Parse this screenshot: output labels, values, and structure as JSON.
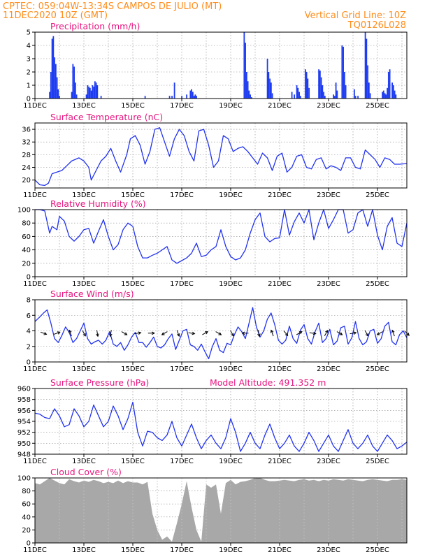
{
  "header": {
    "line1": "CPTEC:   059:04W-13:34S   CAMPOS DE JULIO (MT)",
    "line2": "11DEC2020 10Z (GMT)",
    "grid_note": "Vertical Grid Line: 10Z",
    "code": "TQ0126L028"
  },
  "colors": {
    "header_text": "#ff8c1a",
    "panel_title": "#e6157f",
    "series_line": "#2233ee",
    "precip_bar": "#1f3cf0",
    "cloud_fill": "#a8a8a8",
    "wind_arrow": "#000000"
  },
  "chart_data": [
    {
      "type": "bar",
      "title": "Precipitation (mm/h)",
      "x_ticks": [
        "11DEC",
        "13DEC",
        "15DEC",
        "17DEC",
        "19DEC",
        "21DEC",
        "23DEC",
        "25DEC"
      ],
      "ylim": [
        0,
        5
      ],
      "y_ticks": [
        0,
        1,
        2,
        3,
        4,
        5
      ],
      "grid": true,
      "x_days": [
        0.6,
        0.65,
        0.7,
        0.75,
        0.8,
        0.85,
        0.9,
        0.95,
        1.0,
        1.5,
        1.55,
        1.6,
        1.65,
        1.7,
        2.1,
        2.15,
        2.2,
        2.25,
        2.3,
        2.35,
        2.4,
        2.45,
        2.5,
        2.55,
        2.7,
        4.5,
        5.5,
        5.6,
        5.7,
        6.0,
        6.2,
        6.35,
        6.4,
        6.45,
        6.5,
        6.55,
        6.6,
        8.55,
        8.6,
        8.65,
        8.7,
        8.75,
        8.8,
        8.85,
        9.5,
        9.55,
        9.6,
        9.65,
        9.7,
        10.5,
        10.6,
        10.7,
        10.75,
        10.8,
        10.85,
        11.05,
        11.1,
        11.15,
        11.2,
        11.6,
        11.65,
        11.7,
        11.75,
        11.8,
        11.85,
        12.2,
        12.25,
        12.3,
        12.35,
        12.55,
        12.6,
        12.65,
        12.7,
        13.05,
        13.1,
        13.2,
        13.5,
        13.55,
        13.6,
        13.65,
        13.7,
        14.2,
        14.25,
        14.3,
        14.35,
        14.4,
        14.45,
        14.5,
        14.6,
        14.65,
        14.7,
        14.75
      ],
      "values": [
        0.5,
        2.0,
        4.5,
        4.7,
        3.1,
        2.6,
        1.6,
        0.7,
        0.2,
        0.5,
        2.6,
        2.4,
        1.2,
        0.3,
        0.3,
        1.0,
        0.9,
        0.8,
        0.6,
        1.0,
        0.9,
        1.3,
        1.2,
        1.0,
        0.2,
        0.2,
        0.2,
        0.2,
        1.2,
        0.2,
        0.3,
        0.6,
        0.7,
        0.5,
        0.2,
        0.3,
        0.2,
        5.0,
        4.2,
        2.0,
        1.3,
        0.6,
        0.3,
        0.1,
        3.0,
        2.0,
        1.5,
        1.2,
        0.4,
        0.5,
        0.3,
        1.0,
        0.8,
        0.5,
        0.2,
        2.2,
        2.0,
        1.5,
        0.8,
        2.2,
        2.1,
        1.6,
        1.0,
        0.5,
        0.2,
        0.3,
        0.2,
        1.2,
        0.6,
        4.0,
        3.9,
        2.0,
        1.0,
        0.7,
        0.2,
        0.2,
        5.0,
        4.5,
        2.5,
        1.2,
        0.4,
        0.5,
        0.6,
        0.4,
        0.3,
        0.8,
        2.0,
        2.2,
        1.2,
        1.0,
        0.6,
        0.3
      ]
    },
    {
      "type": "line",
      "title": "Surface Temperature (nC)",
      "x_ticks": [
        "11DEC",
        "13DEC",
        "15DEC",
        "17DEC",
        "19DEC",
        "21DEC",
        "23DEC",
        "25DEC"
      ],
      "ylim": [
        17.5,
        38
      ],
      "y_ticks": [
        20,
        24,
        28,
        32,
        36
      ],
      "grid": true,
      "x_days": [
        0,
        0.2,
        0.4,
        0.55,
        0.7,
        0.9,
        1.1,
        1.3,
        1.5,
        1.8,
        2.0,
        2.2,
        2.3,
        2.5,
        2.7,
        2.9,
        3.1,
        3.3,
        3.5,
        3.75,
        3.9,
        4.1,
        4.3,
        4.5,
        4.7,
        4.9,
        5.1,
        5.3,
        5.5,
        5.7,
        5.9,
        6.1,
        6.3,
        6.5,
        6.7,
        6.9,
        7.1,
        7.3,
        7.5,
        7.7,
        7.9,
        8.1,
        8.3,
        8.5,
        8.7,
        8.9,
        9.1,
        9.3,
        9.5,
        9.7,
        9.9,
        10.1,
        10.3,
        10.5,
        10.7,
        10.9,
        11.1,
        11.3,
        11.5,
        11.7,
        11.9,
        12.1,
        12.3,
        12.5,
        12.7,
        12.9,
        13.1,
        13.3,
        13.5,
        13.7,
        13.9,
        14.1,
        14.3,
        14.5,
        14.7,
        14.9,
        15.2
      ],
      "values": [
        20.0,
        18.5,
        18.3,
        19.0,
        22.0,
        22.5,
        23.0,
        24.5,
        26.0,
        27.0,
        26.0,
        24.0,
        20.0,
        23.0,
        26.0,
        27.5,
        30.0,
        26.0,
        22.5,
        28.0,
        33.0,
        34.0,
        31.0,
        25.0,
        29.0,
        36.0,
        36.5,
        32.0,
        27.5,
        33.0,
        36.0,
        34.0,
        29.0,
        26.0,
        35.5,
        36.0,
        31.0,
        24.0,
        26.0,
        34.0,
        33.0,
        29.0,
        30.0,
        30.5,
        29.0,
        27.0,
        25.0,
        28.5,
        27.0,
        23.0,
        27.5,
        28.5,
        22.5,
        24.0,
        27.5,
        28.0,
        24.0,
        23.5,
        26.5,
        27.0,
        23.5,
        24.5,
        24.0,
        23.0,
        27.0,
        27.0,
        24.0,
        23.5,
        29.5,
        28.0,
        26.5,
        24.0,
        27.0,
        26.5,
        25.0,
        25.0,
        25.2
      ]
    },
    {
      "type": "line",
      "title": "Relative Humidity (%)",
      "x_ticks": [
        "11DEC",
        "13DEC",
        "15DEC",
        "17DEC",
        "19DEC",
        "21DEC",
        "23DEC",
        "25DEC"
      ],
      "ylim": [
        0,
        100
      ],
      "y_ticks": [
        0,
        20,
        40,
        60,
        80,
        100
      ],
      "grid": true,
      "x_days": [
        0,
        0.2,
        0.4,
        0.6,
        0.7,
        0.9,
        1.0,
        1.2,
        1.4,
        1.6,
        1.8,
        2.0,
        2.2,
        2.4,
        2.6,
        2.8,
        3.0,
        3.2,
        3.4,
        3.6,
        3.8,
        4.0,
        4.2,
        4.4,
        4.6,
        4.8,
        5.0,
        5.2,
        5.4,
        5.6,
        5.8,
        6.0,
        6.2,
        6.4,
        6.6,
        6.8,
        7.0,
        7.2,
        7.4,
        7.6,
        7.8,
        8.0,
        8.2,
        8.4,
        8.6,
        8.8,
        9.0,
        9.2,
        9.4,
        9.6,
        9.8,
        10.0,
        10.2,
        10.4,
        10.6,
        10.8,
        11.0,
        11.2,
        11.4,
        11.6,
        11.8,
        12.0,
        12.2,
        12.4,
        12.6,
        12.8,
        13.0,
        13.2,
        13.4,
        13.6,
        13.8,
        14.0,
        14.2,
        14.4,
        14.6,
        14.8,
        15.0,
        15.2
      ],
      "values": [
        100,
        100,
        98,
        65,
        75,
        70,
        90,
        83,
        60,
        53,
        60,
        70,
        72,
        50,
        68,
        85,
        60,
        40,
        48,
        70,
        80,
        75,
        45,
        28,
        28,
        32,
        35,
        40,
        45,
        25,
        20,
        24,
        28,
        35,
        50,
        30,
        32,
        40,
        45,
        70,
        45,
        30,
        25,
        28,
        40,
        65,
        85,
        95,
        60,
        52,
        57,
        58,
        100,
        62,
        82,
        95,
        80,
        100,
        55,
        80,
        100,
        72,
        85,
        100,
        100,
        65,
        70,
        95,
        100,
        75,
        100,
        62,
        40,
        75,
        88,
        50,
        45,
        80
      ]
    },
    {
      "type": "line",
      "title": "Surface Wind (m/s)",
      "x_ticks": [
        "11DEC",
        "13DEC",
        "15DEC",
        "17DEC",
        "19DEC",
        "21DEC",
        "23DEC",
        "25DEC"
      ],
      "ylim": [
        0,
        8
      ],
      "y_ticks": [
        0,
        2,
        4,
        6,
        8
      ],
      "grid": true,
      "x_days": [
        0,
        0.1,
        0.2,
        0.35,
        0.5,
        0.65,
        0.8,
        0.95,
        1.1,
        1.25,
        1.4,
        1.55,
        1.7,
        1.85,
        2.0,
        2.15,
        2.3,
        2.45,
        2.6,
        2.75,
        2.9,
        3.05,
        3.2,
        3.35,
        3.5,
        3.65,
        3.8,
        3.95,
        4.1,
        4.25,
        4.4,
        4.55,
        4.7,
        4.85,
        5.0,
        5.15,
        5.3,
        5.45,
        5.6,
        5.75,
        5.9,
        6.05,
        6.2,
        6.35,
        6.5,
        6.65,
        6.8,
        6.95,
        7.1,
        7.25,
        7.4,
        7.55,
        7.7,
        7.85,
        8.0,
        8.15,
        8.3,
        8.45,
        8.6,
        8.75,
        8.9,
        9.05,
        9.2,
        9.35,
        9.5,
        9.65,
        9.8,
        9.95,
        10.1,
        10.25,
        10.4,
        10.55,
        10.7,
        10.85,
        11.0,
        11.15,
        11.3,
        11.45,
        11.6,
        11.75,
        11.9,
        12.05,
        12.2,
        12.35,
        12.5,
        12.65,
        12.8,
        12.95,
        13.1,
        13.25,
        13.4,
        13.55,
        13.7,
        13.85,
        14.0,
        14.15,
        14.3,
        14.45,
        14.6,
        14.75,
        14.9,
        15.05,
        15.2
      ],
      "values": [
        5.2,
        5.5,
        5.8,
        6.3,
        6.7,
        5.0,
        3.0,
        2.5,
        3.4,
        4.5,
        3.8,
        2.5,
        3.0,
        4.0,
        5.0,
        3.0,
        2.3,
        2.6,
        2.8,
        2.3,
        2.8,
        3.9,
        2.3,
        2.0,
        2.5,
        1.5,
        2.2,
        3.2,
        3.8,
        2.5,
        2.5,
        1.9,
        2.5,
        3.2,
        2.0,
        1.8,
        2.2,
        3.0,
        3.6,
        1.6,
        2.8,
        4.0,
        4.2,
        2.2,
        2.0,
        1.5,
        2.3,
        1.3,
        0.4,
        2.0,
        3.0,
        1.5,
        1.2,
        2.4,
        2.2,
        3.5,
        4.5,
        3.9,
        3.0,
        5.0,
        7.0,
        4.5,
        3.2,
        4.0,
        5.5,
        6.3,
        4.8,
        2.8,
        2.3,
        2.8,
        4.6,
        3.0,
        2.4,
        4.1,
        4.8,
        3.0,
        2.3,
        3.9,
        5.0,
        2.5,
        3.0,
        4.2,
        2.2,
        2.7,
        4.4,
        4.6,
        2.3,
        3.1,
        5.2,
        3.0,
        2.2,
        2.6,
        4.0,
        4.2,
        2.4,
        3.0,
        4.6,
        5.1,
        2.6,
        2.2,
        3.5,
        4.0,
        3.1
      ]
    },
    {
      "type": "line",
      "title": "Surface Pressure (hPa)",
      "annotation": "Model Altitude: 491.352 m",
      "x_ticks": [
        "11DEC",
        "13DEC",
        "15DEC",
        "17DEC",
        "19DEC",
        "21DEC",
        "23DEC",
        "25DEC"
      ],
      "ylim": [
        948,
        960
      ],
      "y_ticks": [
        948,
        950,
        952,
        954,
        956,
        958,
        960
      ],
      "grid": true,
      "x_days": [
        0,
        0.2,
        0.4,
        0.6,
        0.8,
        1.0,
        1.2,
        1.4,
        1.6,
        1.8,
        2.0,
        2.2,
        2.4,
        2.6,
        2.8,
        3.0,
        3.2,
        3.4,
        3.6,
        3.8,
        4.0,
        4.2,
        4.4,
        4.6,
        4.8,
        5.0,
        5.2,
        5.4,
        5.6,
        5.8,
        6.0,
        6.2,
        6.4,
        6.6,
        6.8,
        7.0,
        7.2,
        7.4,
        7.6,
        7.8,
        8.0,
        8.2,
        8.4,
        8.6,
        8.8,
        9.0,
        9.2,
        9.4,
        9.6,
        9.8,
        10.0,
        10.2,
        10.4,
        10.6,
        10.8,
        11.0,
        11.2,
        11.4,
        11.6,
        11.8,
        12.0,
        12.2,
        12.4,
        12.6,
        12.8,
        13.0,
        13.2,
        13.4,
        13.6,
        13.8,
        14.0,
        14.2,
        14.4,
        14.6,
        14.8,
        15.0,
        15.2
      ],
      "values": [
        955.5,
        955.3,
        954.7,
        954.5,
        956.3,
        955.0,
        953.0,
        953.4,
        956.3,
        955.0,
        953.0,
        954.0,
        957.0,
        955.0,
        953.0,
        954.0,
        956.8,
        955.0,
        952.5,
        954.5,
        957.5,
        952.0,
        949.5,
        952.2,
        952.0,
        951.0,
        950.5,
        951.5,
        954.0,
        951.0,
        949.5,
        951.5,
        953.5,
        951.0,
        949.0,
        950.5,
        951.5,
        950.0,
        949.0,
        951.0,
        954.5,
        952.0,
        948.5,
        950.0,
        952.0,
        950.0,
        949.0,
        951.5,
        953.5,
        951.0,
        949.0,
        950.0,
        951.5,
        949.5,
        948.5,
        950.0,
        952.0,
        950.5,
        948.5,
        950.0,
        951.5,
        949.5,
        948.5,
        950.5,
        952.5,
        950.0,
        949.0,
        950.0,
        951.5,
        949.5,
        948.5,
        950.0,
        951.5,
        950.5,
        949.0,
        949.5,
        950.2
      ]
    },
    {
      "type": "area",
      "title": "Cloud Cover (%)",
      "x_ticks": [
        "11DEC",
        "13DEC",
        "15DEC",
        "17DEC",
        "19DEC",
        "21DEC",
        "23DEC",
        "25DEC"
      ],
      "ylim": [
        0,
        100
      ],
      "y_ticks": [
        0,
        20,
        40,
        60,
        80,
        100
      ],
      "grid": true,
      "x_days": [
        0,
        0.2,
        0.4,
        0.6,
        0.8,
        1.0,
        1.2,
        1.4,
        1.6,
        1.8,
        2.0,
        2.2,
        2.4,
        2.6,
        2.8,
        3.0,
        3.2,
        3.4,
        3.6,
        3.8,
        4.0,
        4.2,
        4.4,
        4.6,
        4.8,
        5.0,
        5.2,
        5.4,
        5.6,
        5.8,
        6.0,
        6.2,
        6.4,
        6.6,
        6.8,
        7.0,
        7.2,
        7.4,
        7.6,
        7.8,
        8.0,
        8.2,
        8.4,
        8.6,
        8.8,
        9.0,
        9.2,
        9.4,
        9.6,
        9.8,
        10.0,
        10.2,
        10.4,
        10.6,
        10.8,
        11.0,
        11.2,
        11.4,
        11.6,
        11.8,
        12.0,
        12.2,
        12.4,
        12.6,
        12.8,
        13.0,
        13.2,
        13.4,
        13.6,
        13.8,
        14.0,
        14.2,
        14.4,
        14.6,
        14.8,
        15.0,
        15.2
      ],
      "values": [
        92,
        90,
        95,
        100,
        96,
        92,
        90,
        98,
        95,
        93,
        96,
        94,
        97,
        95,
        92,
        94,
        92,
        96,
        92,
        95,
        93,
        93,
        90,
        94,
        45,
        20,
        5,
        10,
        2,
        30,
        60,
        95,
        55,
        20,
        2,
        90,
        85,
        90,
        45,
        92,
        97,
        90,
        94,
        95,
        97,
        100,
        100,
        97,
        95,
        95,
        96,
        97,
        96,
        95,
        97,
        98,
        96,
        97,
        95,
        97,
        96,
        98,
        97,
        96,
        98,
        97,
        96,
        95,
        97,
        98,
        97,
        96,
        95,
        97,
        97,
        98,
        97
      ]
    }
  ]
}
